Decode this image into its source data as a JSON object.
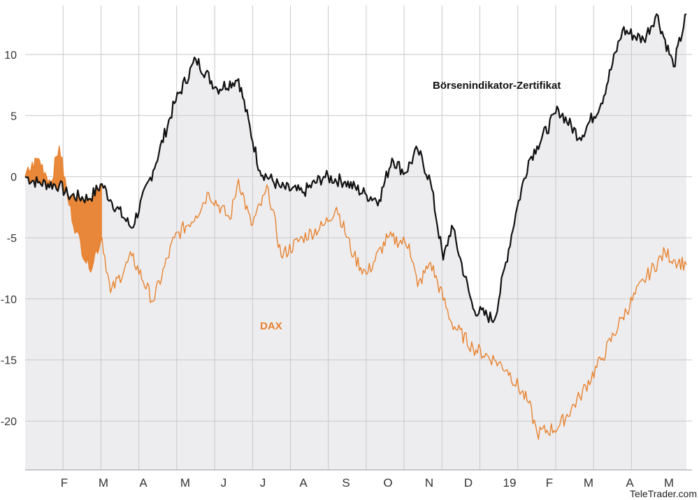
{
  "chart_data": {
    "type": "line",
    "ylim": [
      -24,
      14
    ],
    "y_ticks": [
      "10",
      "5",
      "0",
      "-5",
      "-10",
      "-15",
      "-20"
    ],
    "y_tick_values": [
      10,
      5,
      0,
      -5,
      -10,
      -15,
      -20
    ],
    "x_ticks": [
      "F",
      "M",
      "A",
      "M",
      "J",
      "J",
      "A",
      "S",
      "O",
      "N",
      "D",
      "19",
      "F",
      "M",
      "A",
      "M"
    ],
    "grid": true,
    "credit": "TeleTrader.com",
    "colors": {
      "zertifikat": "#111111",
      "dax": "#E8822E",
      "area": "#EDEDEF",
      "outperformance": "#E8822E",
      "grid": "#C8C8C8"
    },
    "series": [
      {
        "name": "Börsenindikator-Zertifikat",
        "label": "Börsenindikator-Zertifikat",
        "x": [
          0,
          0.3,
          0.8,
          1,
          1.5,
          1.8,
          2,
          2.5,
          3,
          3.5,
          4,
          4.5,
          5,
          5.5,
          6,
          6.5,
          7,
          7.5,
          8,
          8.3,
          8.6,
          8.9,
          9.2,
          9.5,
          9.8,
          10,
          10.5,
          11,
          11.5,
          11.8,
          12,
          12.5,
          13,
          13.5,
          14,
          14.5,
          14.8,
          15.2,
          15.5
        ],
        "values": [
          0,
          -0.5,
          -0.7,
          -1.5,
          -1.8,
          -0.6,
          -1.9,
          -4.2,
          0.5,
          6,
          9.6,
          7.2,
          8,
          0.5,
          -0.9,
          -1.3,
          0,
          -0.4,
          -1.5,
          -1.9,
          1.5,
          0.3,
          2.2,
          -0.4,
          -6.8,
          -4,
          -10.8,
          -11.7,
          -3,
          1.3,
          2.5,
          5.5,
          3.2,
          6,
          12,
          11.2,
          13.3,
          9,
          13.3
        ]
      },
      {
        "name": "DAX",
        "label": "DAX",
        "x": [
          0,
          0.3,
          0.6,
          0.8,
          1,
          1.2,
          1.5,
          1.8,
          2,
          2.5,
          3,
          3.5,
          4,
          4.3,
          4.8,
          5,
          5.3,
          5.7,
          6,
          6.5,
          7,
          7.3,
          7.7,
          8,
          8.5,
          9,
          9.2,
          9.5,
          10,
          10.5,
          11,
          11.3,
          11.8,
          12,
          12.5,
          13,
          13.5,
          14,
          14.5,
          15,
          15.2,
          15.5
        ],
        "values": [
          0,
          1.5,
          -0.5,
          2.5,
          -1.8,
          -4.5,
          -7.5,
          -5,
          -9.5,
          -6.5,
          -10.2,
          -5,
          -3.2,
          -1.3,
          -3.5,
          -0.2,
          -4,
          -1,
          -6.5,
          -5,
          -4,
          -2.5,
          -6.5,
          -8,
          -5,
          -5.5,
          -9,
          -7,
          -12,
          -14,
          -15,
          -15.8,
          -18.5,
          -21,
          -20.5,
          -18,
          -15,
          -11.5,
          -8.5,
          -6.2,
          -6.8,
          -7.2
        ]
      }
    ]
  }
}
